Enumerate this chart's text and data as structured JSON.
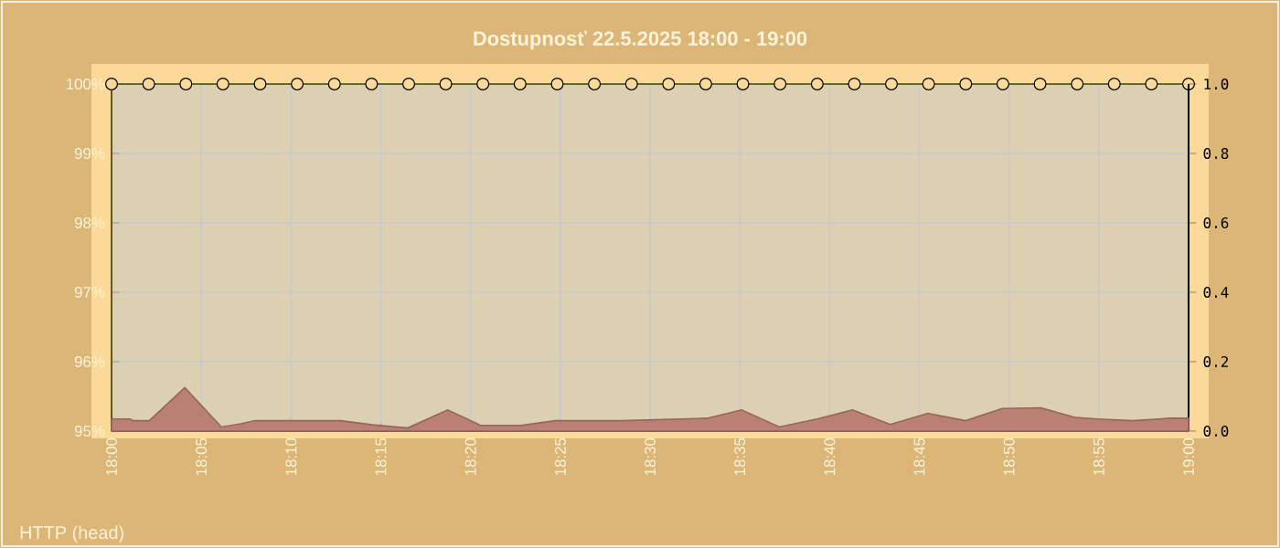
{
  "chart_data": {
    "type": "line",
    "title": "Dostupnosť 22.5.2025 18:00 - 19:00",
    "annotations": [
      "HTTP (head)"
    ],
    "xlim": [
      18,
      19
    ],
    "xticks": [
      {
        "value": 18,
        "label": "18:00"
      },
      {
        "value": 18.0833,
        "label": "18:05"
      },
      {
        "value": 18.1667,
        "label": "18:10"
      },
      {
        "value": 18.25,
        "label": "18:15"
      },
      {
        "value": 18.3333,
        "label": "18:20"
      },
      {
        "value": 18.4167,
        "label": "18:25"
      },
      {
        "value": 18.5,
        "label": "18:30"
      },
      {
        "value": 18.5833,
        "label": "18:35"
      },
      {
        "value": 18.6667,
        "label": "18:40"
      },
      {
        "value": 18.75,
        "label": "18:45"
      },
      {
        "value": 18.8333,
        "label": "18:50"
      },
      {
        "value": 18.9167,
        "label": "18:55"
      },
      {
        "value": 19,
        "label": "19:00"
      }
    ],
    "ylim": [
      95,
      100
    ],
    "yticks": [
      {
        "value": 95,
        "label": "95%"
      },
      {
        "value": 96,
        "label": "96%"
      },
      {
        "value": 97,
        "label": "97%"
      },
      {
        "value": 98,
        "label": "98%"
      },
      {
        "value": 99,
        "label": "99%"
      },
      {
        "value": 100,
        "label": "100%"
      }
    ],
    "y2lim": [
      0,
      1
    ],
    "y2ticks": [
      {
        "value": 0,
        "label": "0.0"
      },
      {
        "value": 0.2,
        "label": "0.2"
      },
      {
        "value": 0.4,
        "label": "0.4"
      },
      {
        "value": 0.6,
        "label": "0.6"
      },
      {
        "value": 0.8,
        "label": "0.8"
      },
      {
        "value": 1,
        "label": "1.0"
      }
    ],
    "grid": true,
    "series": [
      {
        "type": "area",
        "axis": "y2",
        "color": "#b98073",
        "x": [
          18.0,
          18.017,
          18.02,
          18.035,
          18.068,
          18.102,
          18.12,
          18.133,
          18.213,
          18.242,
          18.275,
          18.312,
          18.343,
          18.38,
          18.412,
          18.473,
          18.553,
          18.585,
          18.62,
          18.655,
          18.688,
          18.723,
          18.758,
          18.793,
          18.827,
          18.863,
          18.895,
          18.915,
          18.948,
          18.983,
          19.0
        ],
        "values": [
          0.035,
          0.035,
          0.03,
          0.03,
          0.125,
          0.012,
          0.021,
          0.03,
          0.03,
          0.018,
          0.009,
          0.061,
          0.016,
          0.016,
          0.03,
          0.03,
          0.037,
          0.061,
          0.012,
          0.035,
          0.061,
          0.019,
          0.051,
          0.03,
          0.065,
          0.067,
          0.039,
          0.035,
          0.03,
          0.037,
          0.037
        ]
      },
      {
        "marker": "circle",
        "color": "#5f6a2e",
        "x": [
          18.0,
          18.0345,
          18.069,
          18.1034,
          18.1379,
          18.1724,
          18.2069,
          18.2414,
          18.2759,
          18.3103,
          18.3448,
          18.3793,
          18.4138,
          18.4483,
          18.4828,
          18.5172,
          18.5517,
          18.5862,
          18.6207,
          18.6552,
          18.6897,
          18.7241,
          18.7586,
          18.7931,
          18.8276,
          18.8621,
          18.8966,
          18.931,
          18.9655,
          19.0
        ],
        "values": [
          100,
          100,
          100,
          100,
          100,
          100,
          100,
          100,
          100,
          100,
          100,
          100,
          100,
          100,
          100,
          100,
          100,
          100,
          100,
          100,
          100,
          100,
          100,
          100,
          100,
          100,
          100,
          100,
          100,
          100
        ]
      }
    ]
  }
}
